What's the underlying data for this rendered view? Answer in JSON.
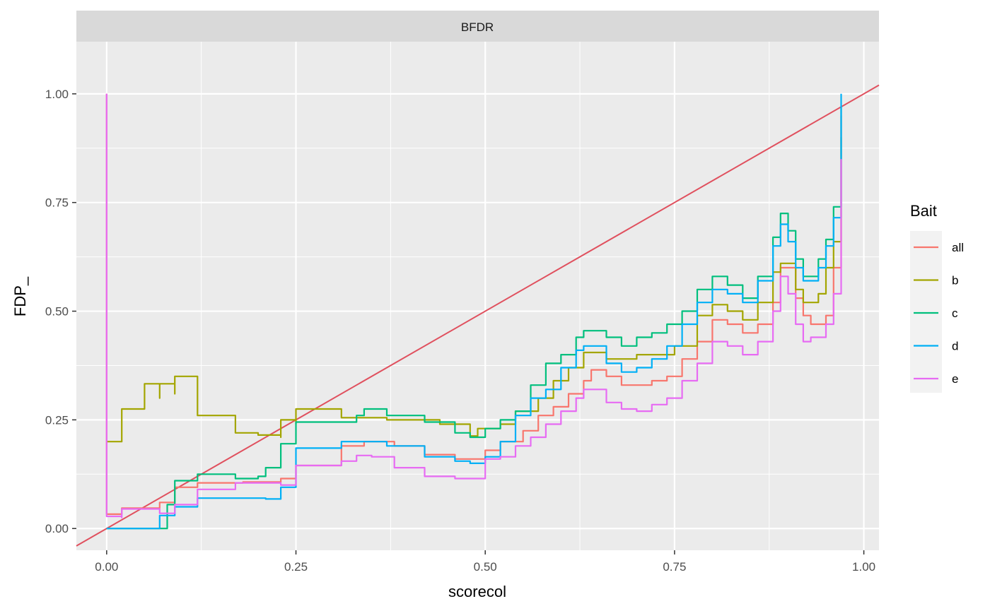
{
  "chart_data": {
    "type": "line",
    "facet_label": "BFDR",
    "xlabel": "scorecol",
    "ylabel": "FDP_",
    "xlim": [
      -0.04,
      1.02
    ],
    "ylim": [
      -0.05,
      1.12
    ],
    "xticks": [
      0.0,
      0.25,
      0.5,
      0.75,
      1.0
    ],
    "xtick_labels": [
      "0.00",
      "0.25",
      "0.50",
      "0.75",
      "1.00"
    ],
    "yticks": [
      0.0,
      0.25,
      0.5,
      0.75,
      1.0
    ],
    "ytick_labels": [
      "0.00",
      "0.25",
      "0.50",
      "0.75",
      "1.00"
    ],
    "grid": true,
    "legend": {
      "title": "Bait",
      "position": "right"
    },
    "reference_line": {
      "slope": 1,
      "intercept": 0,
      "color": "#E0505E"
    },
    "series": [
      {
        "name": "all",
        "color": "#F8766D",
        "points": [
          [
            0,
            1.0
          ],
          [
            0,
            0.033
          ],
          [
            0.02,
            0.033
          ],
          [
            0.02,
            0.047
          ],
          [
            0.05,
            0.047
          ],
          [
            0.07,
            0.06
          ],
          [
            0.09,
            0.095
          ],
          [
            0.12,
            0.095
          ],
          [
            0.12,
            0.105
          ],
          [
            0.18,
            0.107
          ],
          [
            0.23,
            0.115
          ],
          [
            0.25,
            0.115
          ],
          [
            0.25,
            0.145
          ],
          [
            0.31,
            0.19
          ],
          [
            0.34,
            0.2
          ],
          [
            0.38,
            0.19
          ],
          [
            0.42,
            0.17
          ],
          [
            0.46,
            0.16
          ],
          [
            0.48,
            0.16
          ],
          [
            0.5,
            0.18
          ],
          [
            0.52,
            0.2
          ],
          [
            0.55,
            0.225
          ],
          [
            0.57,
            0.26
          ],
          [
            0.59,
            0.28
          ],
          [
            0.61,
            0.31
          ],
          [
            0.63,
            0.34
          ],
          [
            0.64,
            0.365
          ],
          [
            0.66,
            0.35
          ],
          [
            0.68,
            0.33
          ],
          [
            0.7,
            0.33
          ],
          [
            0.72,
            0.34
          ],
          [
            0.74,
            0.35
          ],
          [
            0.76,
            0.39
          ],
          [
            0.78,
            0.43
          ],
          [
            0.8,
            0.48
          ],
          [
            0.82,
            0.47
          ],
          [
            0.84,
            0.45
          ],
          [
            0.86,
            0.47
          ],
          [
            0.88,
            0.52
          ],
          [
            0.89,
            0.6
          ],
          [
            0.9,
            0.6
          ],
          [
            0.91,
            0.53
          ],
          [
            0.92,
            0.49
          ],
          [
            0.93,
            0.47
          ],
          [
            0.95,
            0.49
          ],
          [
            0.96,
            0.6
          ],
          [
            0.97,
            0.6
          ],
          [
            0.97,
            0.95
          ]
        ]
      },
      {
        "name": "b",
        "color": "#A3A500",
        "points": [
          [
            0,
            0.2
          ],
          [
            0.02,
            0.275
          ],
          [
            0.05,
            0.333
          ],
          [
            0.07,
            0.3
          ],
          [
            0.07,
            0.333
          ],
          [
            0.09,
            0.31
          ],
          [
            0.09,
            0.35
          ],
          [
            0.12,
            0.333
          ],
          [
            0.12,
            0.26
          ],
          [
            0.17,
            0.25
          ],
          [
            0.17,
            0.22
          ],
          [
            0.2,
            0.215
          ],
          [
            0.23,
            0.21
          ],
          [
            0.23,
            0.25
          ],
          [
            0.25,
            0.24
          ],
          [
            0.25,
            0.275
          ],
          [
            0.31,
            0.27
          ],
          [
            0.31,
            0.255
          ],
          [
            0.37,
            0.25
          ],
          [
            0.44,
            0.24
          ],
          [
            0.48,
            0.213
          ],
          [
            0.49,
            0.23
          ],
          [
            0.52,
            0.24
          ],
          [
            0.54,
            0.27
          ],
          [
            0.57,
            0.3
          ],
          [
            0.59,
            0.34
          ],
          [
            0.61,
            0.37
          ],
          [
            0.63,
            0.405
          ],
          [
            0.66,
            0.39
          ],
          [
            0.68,
            0.39
          ],
          [
            0.7,
            0.4
          ],
          [
            0.72,
            0.4
          ],
          [
            0.75,
            0.42
          ],
          [
            0.78,
            0.49
          ],
          [
            0.8,
            0.515
          ],
          [
            0.82,
            0.5
          ],
          [
            0.84,
            0.48
          ],
          [
            0.86,
            0.52
          ],
          [
            0.88,
            0.59
          ],
          [
            0.89,
            0.61
          ],
          [
            0.9,
            0.61
          ],
          [
            0.91,
            0.55
          ],
          [
            0.92,
            0.52
          ],
          [
            0.94,
            0.54
          ],
          [
            0.95,
            0.6
          ],
          [
            0.96,
            0.66
          ],
          [
            0.97,
            0.66
          ],
          [
            0.97,
            0.9
          ]
        ]
      },
      {
        "name": "c",
        "color": "#00BF7D",
        "points": [
          [
            0,
            0.0
          ],
          [
            0.07,
            0.0
          ],
          [
            0.08,
            0.055
          ],
          [
            0.09,
            0.11
          ],
          [
            0.12,
            0.11
          ],
          [
            0.12,
            0.125
          ],
          [
            0.17,
            0.115
          ],
          [
            0.2,
            0.12
          ],
          [
            0.21,
            0.14
          ],
          [
            0.23,
            0.14
          ],
          [
            0.23,
            0.195
          ],
          [
            0.25,
            0.195
          ],
          [
            0.25,
            0.245
          ],
          [
            0.31,
            0.245
          ],
          [
            0.33,
            0.26
          ],
          [
            0.34,
            0.275
          ],
          [
            0.37,
            0.26
          ],
          [
            0.42,
            0.245
          ],
          [
            0.46,
            0.22
          ],
          [
            0.48,
            0.21
          ],
          [
            0.5,
            0.23
          ],
          [
            0.52,
            0.25
          ],
          [
            0.54,
            0.27
          ],
          [
            0.56,
            0.33
          ],
          [
            0.58,
            0.38
          ],
          [
            0.6,
            0.4
          ],
          [
            0.62,
            0.44
          ],
          [
            0.63,
            0.455
          ],
          [
            0.66,
            0.44
          ],
          [
            0.68,
            0.42
          ],
          [
            0.7,
            0.44
          ],
          [
            0.72,
            0.45
          ],
          [
            0.74,
            0.47
          ],
          [
            0.76,
            0.5
          ],
          [
            0.78,
            0.55
          ],
          [
            0.8,
            0.58
          ],
          [
            0.82,
            0.56
          ],
          [
            0.84,
            0.53
          ],
          [
            0.86,
            0.58
          ],
          [
            0.88,
            0.67
          ],
          [
            0.89,
            0.725
          ],
          [
            0.9,
            0.685
          ],
          [
            0.91,
            0.62
          ],
          [
            0.92,
            0.58
          ],
          [
            0.94,
            0.62
          ],
          [
            0.95,
            0.665
          ],
          [
            0.96,
            0.74
          ],
          [
            0.97,
            0.74
          ],
          [
            0.97,
            0.97
          ]
        ]
      },
      {
        "name": "d",
        "color": "#00B0F6",
        "points": [
          [
            0,
            0.0
          ],
          [
            0.07,
            0.0
          ],
          [
            0.07,
            0.03
          ],
          [
            0.09,
            0.05
          ],
          [
            0.12,
            0.05
          ],
          [
            0.12,
            0.07
          ],
          [
            0.21,
            0.068
          ],
          [
            0.23,
            0.095
          ],
          [
            0.25,
            0.095
          ],
          [
            0.25,
            0.185
          ],
          [
            0.31,
            0.2
          ],
          [
            0.34,
            0.2
          ],
          [
            0.37,
            0.19
          ],
          [
            0.42,
            0.165
          ],
          [
            0.46,
            0.155
          ],
          [
            0.48,
            0.15
          ],
          [
            0.5,
            0.165
          ],
          [
            0.52,
            0.2
          ],
          [
            0.54,
            0.26
          ],
          [
            0.56,
            0.3
          ],
          [
            0.58,
            0.32
          ],
          [
            0.6,
            0.37
          ],
          [
            0.62,
            0.41
          ],
          [
            0.63,
            0.42
          ],
          [
            0.66,
            0.38
          ],
          [
            0.68,
            0.36
          ],
          [
            0.7,
            0.37
          ],
          [
            0.72,
            0.39
          ],
          [
            0.74,
            0.42
          ],
          [
            0.76,
            0.47
          ],
          [
            0.78,
            0.52
          ],
          [
            0.8,
            0.55
          ],
          [
            0.82,
            0.54
          ],
          [
            0.84,
            0.52
          ],
          [
            0.86,
            0.57
          ],
          [
            0.88,
            0.65
          ],
          [
            0.89,
            0.7
          ],
          [
            0.9,
            0.66
          ],
          [
            0.91,
            0.6
          ],
          [
            0.92,
            0.57
          ],
          [
            0.94,
            0.6
          ],
          [
            0.95,
            0.65
          ],
          [
            0.96,
            0.715
          ],
          [
            0.97,
            0.715
          ],
          [
            0.97,
            1.0
          ]
        ]
      },
      {
        "name": "e",
        "color": "#E76BF3",
        "points": [
          [
            0,
            1.0
          ],
          [
            0,
            0.028
          ],
          [
            0.02,
            0.025
          ],
          [
            0.02,
            0.045
          ],
          [
            0.07,
            0.04
          ],
          [
            0.07,
            0.035
          ],
          [
            0.09,
            0.04
          ],
          [
            0.09,
            0.055
          ],
          [
            0.12,
            0.055
          ],
          [
            0.12,
            0.09
          ],
          [
            0.17,
            0.105
          ],
          [
            0.23,
            0.1
          ],
          [
            0.25,
            0.125
          ],
          [
            0.25,
            0.145
          ],
          [
            0.31,
            0.155
          ],
          [
            0.33,
            0.168
          ],
          [
            0.35,
            0.165
          ],
          [
            0.38,
            0.14
          ],
          [
            0.42,
            0.12
          ],
          [
            0.46,
            0.115
          ],
          [
            0.48,
            0.115
          ],
          [
            0.5,
            0.16
          ],
          [
            0.52,
            0.165
          ],
          [
            0.54,
            0.19
          ],
          [
            0.56,
            0.21
          ],
          [
            0.58,
            0.24
          ],
          [
            0.6,
            0.27
          ],
          [
            0.62,
            0.3
          ],
          [
            0.63,
            0.32
          ],
          [
            0.66,
            0.29
          ],
          [
            0.68,
            0.275
          ],
          [
            0.7,
            0.27
          ],
          [
            0.72,
            0.285
          ],
          [
            0.74,
            0.3
          ],
          [
            0.76,
            0.34
          ],
          [
            0.78,
            0.38
          ],
          [
            0.8,
            0.43
          ],
          [
            0.82,
            0.42
          ],
          [
            0.84,
            0.4
          ],
          [
            0.86,
            0.43
          ],
          [
            0.88,
            0.5
          ],
          [
            0.89,
            0.58
          ],
          [
            0.9,
            0.54
          ],
          [
            0.91,
            0.47
          ],
          [
            0.92,
            0.43
          ],
          [
            0.93,
            0.44
          ],
          [
            0.95,
            0.47
          ],
          [
            0.96,
            0.54
          ],
          [
            0.97,
            0.6
          ],
          [
            0.97,
            0.85
          ]
        ]
      }
    ]
  }
}
